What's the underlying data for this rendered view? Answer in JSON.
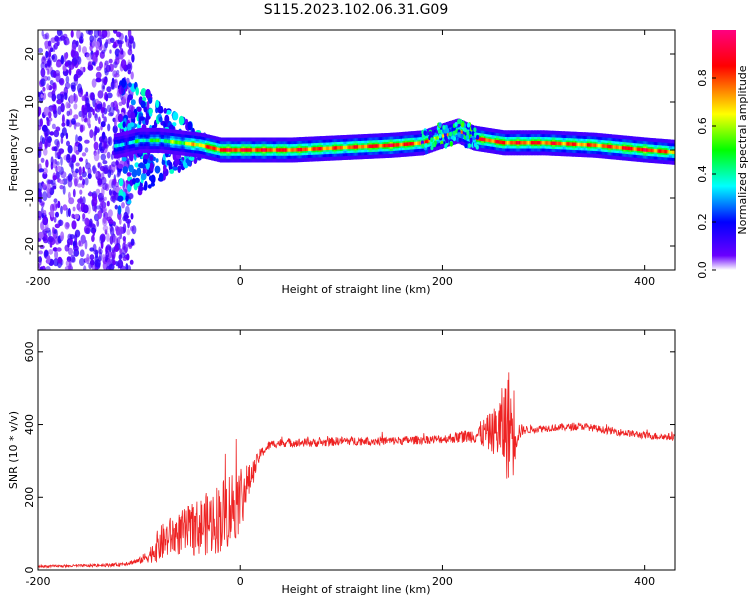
{
  "title": "S115.2023.102.06.31.G09",
  "chart_data": [
    {
      "type": "heatmap",
      "xlabel": "Height of straight line (km)",
      "ylabel": "Frequency (Hz)",
      "xlim": [
        -200,
        430
      ],
      "ylim": [
        -25,
        25
      ],
      "x_ticks": [
        -200,
        0,
        200,
        400
      ],
      "y_ticks": [
        20,
        10,
        0,
        -10,
        -20
      ],
      "colorbar": {
        "label": "Normalized spectral amplitude",
        "range": [
          0,
          1
        ],
        "ticks": [
          "0.0",
          "0.2",
          "0.4",
          "0.6",
          "0.8"
        ],
        "colors": [
          "#ffffff",
          "#6a00ff",
          "#0000ff",
          "#00ffff",
          "#00ff00",
          "#ffff00",
          "#ff0000",
          "#ff0080"
        ]
      },
      "ridge": {
        "x": [
          -200,
          -150,
          -120,
          -100,
          -80,
          -60,
          -40,
          -20,
          0,
          50,
          100,
          150,
          180,
          200,
          215,
          230,
          260,
          300,
          350,
          400,
          430
        ],
        "freq": [
          0,
          0,
          1,
          2,
          2,
          1.5,
          1,
          0,
          0,
          0,
          0.5,
          1,
          1.5,
          3,
          4,
          2.5,
          1.5,
          1.5,
          1,
          0,
          -0.5
        ],
        "amplitude": [
          0.1,
          0.15,
          0.3,
          0.4,
          0.45,
          0.55,
          0.7,
          0.85,
          0.85,
          0.8,
          0.75,
          0.85,
          0.75,
          0.65,
          0.6,
          0.8,
          0.8,
          0.8,
          0.75,
          0.85,
          0.7
        ]
      }
    },
    {
      "type": "line",
      "xlabel": "Height of straight line (km)",
      "ylabel": "SNR (10 * v/v)",
      "xlim": [
        -200,
        430
      ],
      "ylim": [
        0,
        660
      ],
      "x_ticks": [
        -200,
        0,
        200,
        400
      ],
      "y_ticks": [
        0,
        200,
        400,
        600
      ],
      "color": "#ee2222",
      "series": [
        {
          "x": [
            -200,
            -150,
            -120,
            -100,
            -90,
            -80,
            -70,
            -60,
            -50,
            -40,
            -30,
            -20,
            -10,
            0,
            10,
            20,
            30,
            40,
            50,
            80,
            100,
            150,
            200,
            230,
            250,
            260,
            265,
            270,
            275,
            280,
            300,
            340,
            360,
            400,
            430
          ],
          "y": [
            10,
            12,
            15,
            25,
            40,
            70,
            90,
            100,
            110,
            120,
            130,
            145,
            170,
            200,
            250,
            320,
            345,
            350,
            350,
            350,
            355,
            355,
            360,
            370,
            380,
            390,
            400,
            395,
            380,
            385,
            390,
            395,
            385,
            370,
            365
          ],
          "noise": [
            3,
            4,
            5,
            8,
            20,
            50,
            55,
            60,
            70,
            80,
            90,
            100,
            110,
            100,
            40,
            15,
            12,
            12,
            12,
            12,
            12,
            12,
            12,
            20,
            60,
            120,
            160,
            140,
            30,
            12,
            10,
            10,
            10,
            10,
            10
          ]
        }
      ]
    }
  ]
}
